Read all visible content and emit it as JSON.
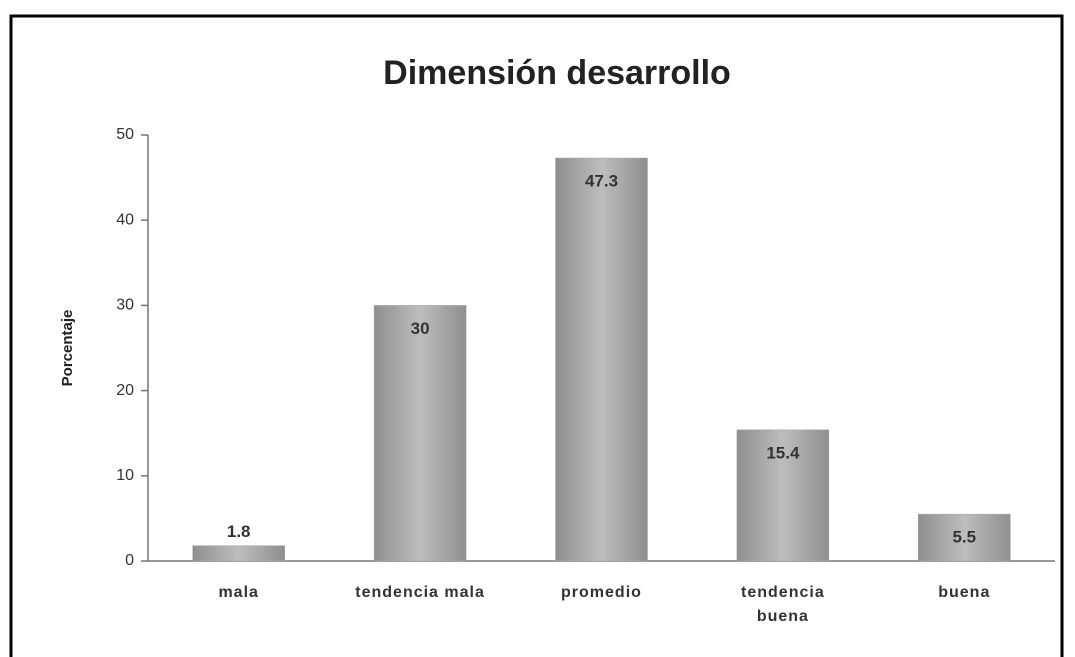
{
  "chart_data": {
    "type": "bar",
    "title": "Dimensión  desarrollo",
    "y_label": "Porcentaje",
    "categories": [
      "mala",
      "tendencia mala",
      "promedio",
      "tendencia buena",
      "buena"
    ],
    "values": [
      1.8,
      30,
      47.3,
      15.4,
      5.5
    ],
    "color": "#a6a6a6",
    "ylim": [
      0,
      50
    ],
    "yticks": [
      0,
      10,
      20,
      30,
      40,
      50
    ],
    "grid": false
  }
}
